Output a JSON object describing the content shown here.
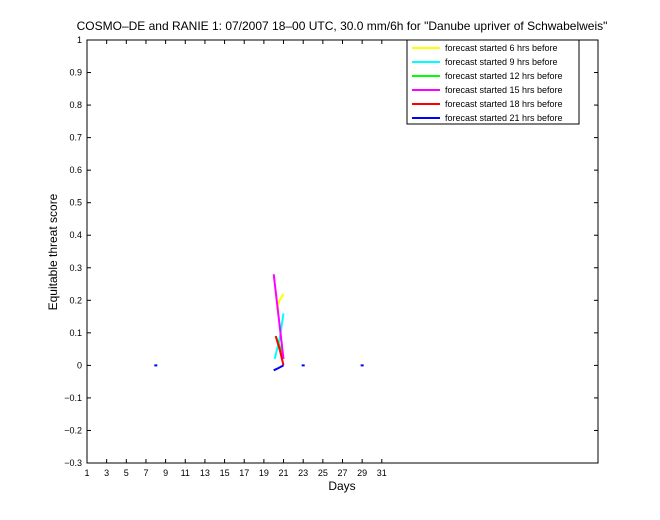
{
  "chart_data": {
    "type": "line",
    "title": "COSMO–DE and RANIE 1: 07/2007 18–00 UTC, 30.0 mm/6h for \"Danube upriver of Schwabelweis\"",
    "xlabel": "Days",
    "ylabel": "Equitable threat score",
    "xlim": [
      1,
      53
    ],
    "ylim": [
      -0.3,
      1
    ],
    "xticks": [
      1,
      3,
      5,
      7,
      9,
      11,
      13,
      15,
      17,
      19,
      21,
      23,
      25,
      27,
      29,
      31
    ],
    "yticks": [
      -0.3,
      -0.2,
      -0.1,
      0,
      0.1,
      0.2,
      0.3,
      0.4,
      0.5,
      0.6,
      0.7,
      0.8,
      0.9,
      1
    ],
    "ytick_labels": [
      "−0.3",
      "−0.2",
      "−0.1",
      "0",
      "0.1",
      "0.2",
      "0.3",
      "0.4",
      "0.5",
      "0.6",
      "0.7",
      "0.8",
      "0.9",
      "1"
    ],
    "legend_position": "top-right",
    "series": [
      {
        "name": "forecast started 6 hrs before",
        "color": "#ffff00",
        "x": [
          20.3,
          20.6,
          21.0
        ],
        "y": [
          0.17,
          0.2,
          0.22
        ]
      },
      {
        "name": "forecast started 9 hrs before",
        "color": "#00ffff",
        "x": [
          20.1,
          20.6,
          21.0
        ],
        "y": [
          0.02,
          0.08,
          0.16
        ]
      },
      {
        "name": "forecast started 12 hrs before",
        "color": "#00ff00",
        "x": [
          20.2,
          20.6,
          21.0
        ],
        "y": [
          0.09,
          0.06,
          0.02
        ]
      },
      {
        "name": "forecast started 15 hrs before",
        "color": "#ff00ff",
        "x": [
          20.0,
          20.5,
          21.0
        ],
        "y": [
          0.28,
          0.15,
          0.02
        ]
      },
      {
        "name": "forecast started 18 hrs before",
        "color": "#ff0000",
        "x": [
          20.2,
          20.6,
          21.0
        ],
        "y": [
          0.09,
          0.05,
          0.0
        ]
      },
      {
        "name": "forecast started 21 hrs before",
        "color": "#0000ff",
        "x": [
          20.0,
          20.5,
          21.0,
          8.0,
          23.0,
          29.0
        ],
        "y": [
          -0.015,
          -0.008,
          0.0,
          0.0,
          0.0,
          0.0
        ],
        "segments": [
          [
            0,
            2
          ],
          [
            3,
            3
          ],
          [
            4,
            4
          ],
          [
            5,
            5
          ]
        ]
      }
    ]
  }
}
